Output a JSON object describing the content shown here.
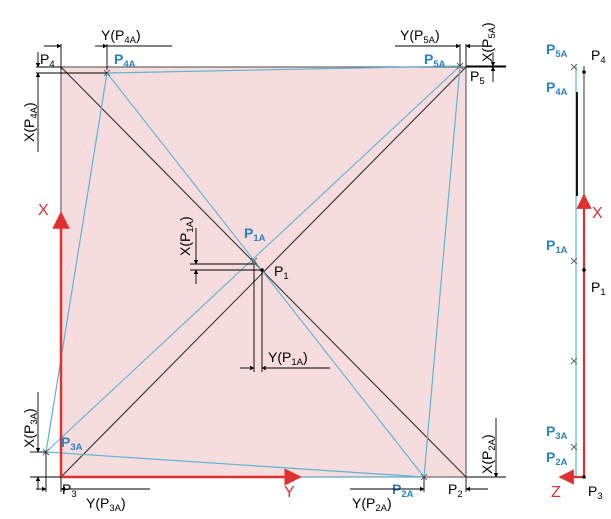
{
  "colors": {
    "square_fill": "#f6dcdc",
    "square_stroke": "#666666",
    "diagonal": "#333333",
    "deformed": "#5ab4d6",
    "axis": "#e03030",
    "label_blue": "#2a82c0",
    "dimension": "#000000"
  },
  "top_view": {
    "corners": [
      {
        "main": "P",
        "sub": "4"
      },
      {
        "main": "P",
        "sub": "5"
      },
      {
        "main": "P",
        "sub": "2"
      },
      {
        "main": "P",
        "sub": "3"
      },
      {
        "main": "P",
        "sub": "1"
      }
    ],
    "deformed_points": [
      {
        "main": "P",
        "sub": "4A"
      },
      {
        "main": "P",
        "sub": "5A"
      },
      {
        "main": "P",
        "sub": "2A"
      },
      {
        "main": "P",
        "sub": "3A"
      },
      {
        "main": "P",
        "sub": "1A"
      }
    ],
    "axes": {
      "x": "X",
      "y": "Y"
    },
    "dimensions": [
      {
        "prefix": "Y(P",
        "sub": "4A",
        "suffix": ")"
      },
      {
        "prefix": "Y(P",
        "sub": "5A",
        "suffix": ")"
      },
      {
        "prefix": "X(P",
        "sub": "5A",
        "suffix": ")"
      },
      {
        "prefix": "X(P",
        "sub": "4A",
        "suffix": ")"
      },
      {
        "prefix": "X(P",
        "sub": "1A",
        "suffix": ")"
      },
      {
        "prefix": "Y(P",
        "sub": "1A",
        "suffix": ")"
      },
      {
        "prefix": "X(P",
        "sub": "3A",
        "suffix": ")"
      },
      {
        "prefix": "Y(P",
        "sub": "3A",
        "suffix": ")"
      },
      {
        "prefix": "Y(P",
        "sub": "2A",
        "suffix": ")"
      },
      {
        "prefix": "X(P",
        "sub": "2A",
        "suffix": ")"
      }
    ]
  },
  "side_view": {
    "axes": {
      "x": "X",
      "z": "Z"
    },
    "labels": [
      {
        "main": "P",
        "sub": "5A"
      },
      {
        "main": "P",
        "sub": "4"
      },
      {
        "main": "P",
        "sub": "4A"
      },
      {
        "main": "P",
        "sub": "1A"
      },
      {
        "main": "P",
        "sub": "1"
      },
      {
        "main": "P",
        "sub": "3A"
      },
      {
        "main": "P",
        "sub": "2A"
      },
      {
        "main": "P",
        "sub": "3"
      }
    ]
  }
}
